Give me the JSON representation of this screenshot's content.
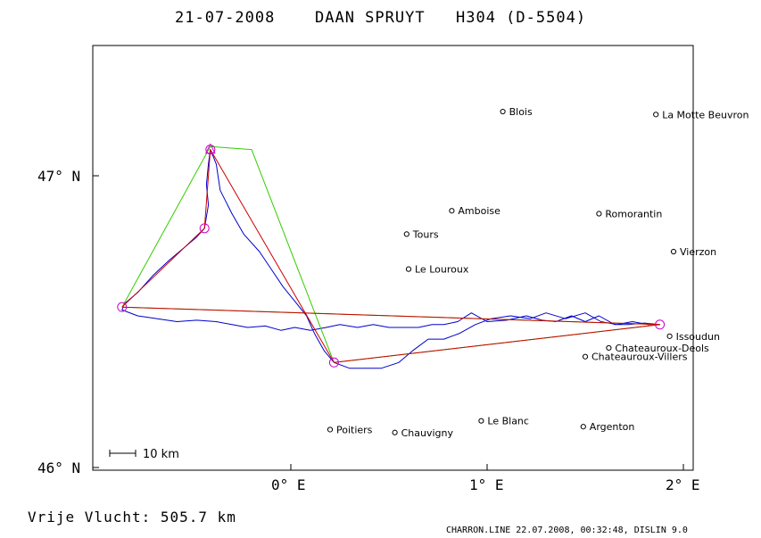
{
  "header": {
    "date": "21-07-2008",
    "pilot": "DAAN SPRUYT",
    "glider": "H304 (D-5504)"
  },
  "axes": {
    "x_ticks": [
      {
        "value": 0,
        "label": "0° E"
      },
      {
        "value": 1,
        "label": "1° E"
      },
      {
        "value": 2,
        "label": "2° E"
      }
    ],
    "y_ticks": [
      {
        "value": 47,
        "label": "47° N"
      },
      {
        "value": 46,
        "label": "46° N"
      }
    ],
    "xlim": [
      -1.0,
      2.0
    ],
    "ylim": [
      46.0,
      47.45
    ]
  },
  "scale": {
    "label": "10 km"
  },
  "cities": [
    {
      "name": "Blois",
      "lon": 1.08,
      "lat": 47.22
    },
    {
      "name": "La Motte Beuvron",
      "lon": 1.86,
      "lat": 47.21
    },
    {
      "name": "Amboise",
      "lon": 0.82,
      "lat": 46.88
    },
    {
      "name": "Romorantin",
      "lon": 1.57,
      "lat": 46.87
    },
    {
      "name": "Tours",
      "lon": 0.59,
      "lat": 46.8
    },
    {
      "name": "Vierzon",
      "lon": 1.95,
      "lat": 46.74
    },
    {
      "name": "Le Louroux",
      "lon": 0.6,
      "lat": 46.68
    },
    {
      "name": "Issoudun",
      "lon": 1.93,
      "lat": 46.45
    },
    {
      "name": "Chateauroux-Deols",
      "lon": 1.62,
      "lat": 46.41
    },
    {
      "name": "Chateauroux-Villers",
      "lon": 1.5,
      "lat": 46.38
    },
    {
      "name": "Le Blanc",
      "lon": 0.97,
      "lat": 46.16
    },
    {
      "name": "Argenton",
      "lon": 1.49,
      "lat": 46.14
    },
    {
      "name": "Poitiers",
      "lon": 0.2,
      "lat": 46.13
    },
    {
      "name": "Chauvigny",
      "lon": 0.53,
      "lat": 46.12
    }
  ],
  "turnpoints": [
    {
      "lon": -0.86,
      "lat": 46.55
    },
    {
      "lon": -0.44,
      "lat": 46.82
    },
    {
      "lon": -0.41,
      "lat": 47.09
    },
    {
      "lon": 0.22,
      "lat": 46.36
    },
    {
      "lon": 1.88,
      "lat": 46.49
    }
  ],
  "task_green": [
    {
      "lon": -0.86,
      "lat": 46.55
    },
    {
      "lon": -0.41,
      "lat": 47.1
    },
    {
      "lon": -0.2,
      "lat": 47.09
    },
    {
      "lon": 0.22,
      "lat": 46.36
    },
    {
      "lon": 1.88,
      "lat": 46.49
    },
    {
      "lon": -0.86,
      "lat": 46.55
    }
  ],
  "task_red": [
    {
      "lon": -0.86,
      "lat": 46.55
    },
    {
      "lon": -0.44,
      "lat": 46.82
    },
    {
      "lon": -0.41,
      "lat": 47.09
    },
    {
      "lon": 0.22,
      "lat": 46.36
    },
    {
      "lon": 1.88,
      "lat": 46.49
    },
    {
      "lon": -0.86,
      "lat": 46.55
    }
  ],
  "track": [
    {
      "lon": 1.88,
      "lat": 46.49
    },
    {
      "lon": 1.8,
      "lat": 46.495
    },
    {
      "lon": 1.72,
      "lat": 46.49
    },
    {
      "lon": 1.65,
      "lat": 46.49
    },
    {
      "lon": 1.57,
      "lat": 46.52
    },
    {
      "lon": 1.5,
      "lat": 46.5
    },
    {
      "lon": 1.43,
      "lat": 46.52
    },
    {
      "lon": 1.35,
      "lat": 46.5
    },
    {
      "lon": 1.28,
      "lat": 46.505
    },
    {
      "lon": 1.2,
      "lat": 46.52
    },
    {
      "lon": 1.1,
      "lat": 46.505
    },
    {
      "lon": 1.0,
      "lat": 46.5
    },
    {
      "lon": 0.92,
      "lat": 46.53
    },
    {
      "lon": 0.85,
      "lat": 46.5
    },
    {
      "lon": 0.78,
      "lat": 46.49
    },
    {
      "lon": 0.72,
      "lat": 46.49
    },
    {
      "lon": 0.65,
      "lat": 46.48
    },
    {
      "lon": 0.58,
      "lat": 46.48
    },
    {
      "lon": 0.5,
      "lat": 46.48
    },
    {
      "lon": 0.42,
      "lat": 46.49
    },
    {
      "lon": 0.34,
      "lat": 46.48
    },
    {
      "lon": 0.25,
      "lat": 46.49
    },
    {
      "lon": 0.18,
      "lat": 46.48
    },
    {
      "lon": 0.1,
      "lat": 46.47
    },
    {
      "lon": 0.02,
      "lat": 46.48
    },
    {
      "lon": -0.05,
      "lat": 46.47
    },
    {
      "lon": -0.13,
      "lat": 46.485
    },
    {
      "lon": -0.22,
      "lat": 46.48
    },
    {
      "lon": -0.3,
      "lat": 46.49
    },
    {
      "lon": -0.38,
      "lat": 46.5
    },
    {
      "lon": -0.48,
      "lat": 46.505
    },
    {
      "lon": -0.58,
      "lat": 46.5
    },
    {
      "lon": -0.68,
      "lat": 46.51
    },
    {
      "lon": -0.78,
      "lat": 46.52
    },
    {
      "lon": -0.86,
      "lat": 46.54
    },
    {
      "lon": -0.85,
      "lat": 46.56
    },
    {
      "lon": -0.78,
      "lat": 46.6
    },
    {
      "lon": -0.7,
      "lat": 46.66
    },
    {
      "lon": -0.62,
      "lat": 46.71
    },
    {
      "lon": -0.55,
      "lat": 46.75
    },
    {
      "lon": -0.48,
      "lat": 46.79
    },
    {
      "lon": -0.44,
      "lat": 46.82
    },
    {
      "lon": -0.42,
      "lat": 46.9
    },
    {
      "lon": -0.43,
      "lat": 46.97
    },
    {
      "lon": -0.42,
      "lat": 47.04
    },
    {
      "lon": -0.41,
      "lat": 47.09
    },
    {
      "lon": -0.38,
      "lat": 47.04
    },
    {
      "lon": -0.36,
      "lat": 46.95
    },
    {
      "lon": -0.3,
      "lat": 46.87
    },
    {
      "lon": -0.24,
      "lat": 46.8
    },
    {
      "lon": -0.16,
      "lat": 46.74
    },
    {
      "lon": -0.1,
      "lat": 46.68
    },
    {
      "lon": -0.04,
      "lat": 46.62
    },
    {
      "lon": 0.02,
      "lat": 46.57
    },
    {
      "lon": 0.08,
      "lat": 46.52
    },
    {
      "lon": 0.12,
      "lat": 46.46
    },
    {
      "lon": 0.17,
      "lat": 46.4
    },
    {
      "lon": 0.22,
      "lat": 46.36
    },
    {
      "lon": 0.3,
      "lat": 46.34
    },
    {
      "lon": 0.38,
      "lat": 46.34
    },
    {
      "lon": 0.46,
      "lat": 46.34
    },
    {
      "lon": 0.55,
      "lat": 46.36
    },
    {
      "lon": 0.62,
      "lat": 46.4
    },
    {
      "lon": 0.7,
      "lat": 46.44
    },
    {
      "lon": 0.78,
      "lat": 46.44
    },
    {
      "lon": 0.86,
      "lat": 46.46
    },
    {
      "lon": 0.94,
      "lat": 46.49
    },
    {
      "lon": 1.02,
      "lat": 46.51
    },
    {
      "lon": 1.12,
      "lat": 46.52
    },
    {
      "lon": 1.22,
      "lat": 46.51
    },
    {
      "lon": 1.3,
      "lat": 46.53
    },
    {
      "lon": 1.4,
      "lat": 46.51
    },
    {
      "lon": 1.5,
      "lat": 46.53
    },
    {
      "lon": 1.58,
      "lat": 46.5
    },
    {
      "lon": 1.66,
      "lat": 46.49
    },
    {
      "lon": 1.74,
      "lat": 46.5
    },
    {
      "lon": 1.82,
      "lat": 46.49
    },
    {
      "lon": 1.88,
      "lat": 46.49
    }
  ],
  "footer": {
    "distance": "Vrije Vlucht:  505.7 km",
    "credit": "CHARRON.LINE 22.07.2008, 00:32:48, DISLIN 9.0"
  },
  "colors": {
    "track": "#0000cc",
    "task_red": "#cc0000",
    "task_green": "#33cc00",
    "turnpoint": "#cc00cc",
    "frame": "#000000"
  }
}
